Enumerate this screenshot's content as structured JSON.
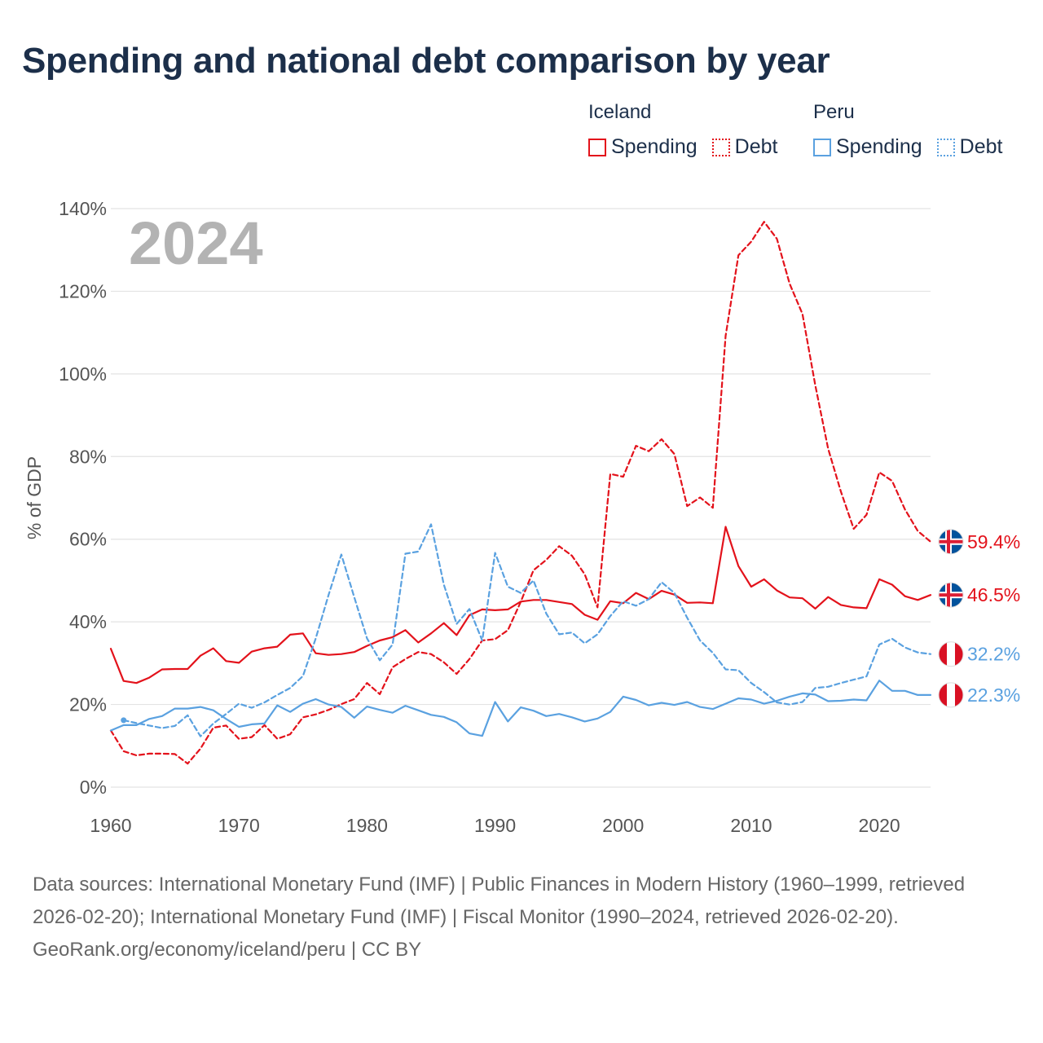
{
  "title": "Spending and national debt comparison by year",
  "year_label": "2024",
  "legend": {
    "groups": [
      {
        "country": "Iceland",
        "items": [
          {
            "label": "Spending",
            "style": "solid",
            "color": "#e3121b"
          },
          {
            "label": "Debt",
            "style": "dotted",
            "color": "#e3121b"
          }
        ]
      },
      {
        "country": "Peru",
        "items": [
          {
            "label": "Spending",
            "style": "solid",
            "color": "#5aa1e0"
          },
          {
            "label": "Debt",
            "style": "dotted",
            "color": "#5aa1e0"
          }
        ]
      }
    ]
  },
  "chart_data": {
    "type": "line",
    "title": "Spending and national debt comparison by year",
    "ylabel": "% of GDP",
    "xlabel": "",
    "xlim": [
      1960,
      2024
    ],
    "ylim": [
      0,
      140
    ],
    "x_ticks": [
      1960,
      1970,
      1980,
      1990,
      2000,
      2010,
      2020
    ],
    "y_ticks": [
      "0%",
      "20%",
      "40%",
      "60%",
      "80%",
      "100%",
      "120%",
      "140%"
    ],
    "y_tick_values": [
      0,
      20,
      40,
      60,
      80,
      100,
      120,
      140
    ],
    "grid": true,
    "series": [
      {
        "name": "Iceland Spending",
        "country": "Iceland",
        "metric": "Spending",
        "color": "#e3121b",
        "dash": "solid",
        "end_label": "46.5%",
        "flag": "iceland",
        "x": [
          1960,
          1961,
          1962,
          1963,
          1964,
          1965,
          1966,
          1967,
          1968,
          1969,
          1970,
          1971,
          1972,
          1973,
          1974,
          1975,
          1976,
          1977,
          1978,
          1979,
          1980,
          1981,
          1982,
          1983,
          1984,
          1985,
          1986,
          1987,
          1988,
          1989,
          1990,
          1991,
          1992,
          1993,
          1994,
          1995,
          1996,
          1997,
          1998,
          1999,
          2000,
          2001,
          2002,
          2003,
          2004,
          2005,
          2006,
          2007,
          2008,
          2009,
          2010,
          2011,
          2012,
          2013,
          2014,
          2015,
          2016,
          2017,
          2018,
          2019,
          2020,
          2021,
          2022,
          2023,
          2024
        ],
        "values": [
          33.5,
          25.7,
          25.2,
          26.5,
          28.5,
          28.6,
          28.6,
          31.8,
          33.6,
          30.5,
          30.1,
          32.8,
          33.6,
          34.0,
          36.9,
          37.2,
          32.4,
          32.0,
          32.2,
          32.7,
          34.2,
          35.5,
          36.3,
          38.0,
          35.0,
          37.2,
          39.7,
          36.8,
          41.6,
          43.0,
          42.8,
          43.0,
          44.9,
          45.3,
          45.3,
          44.8,
          44.3,
          41.7,
          40.5,
          45.0,
          44.5,
          47.0,
          45.5,
          47.5,
          46.6,
          44.6,
          44.7,
          44.5,
          63.0,
          53.5,
          48.5,
          50.3,
          47.6,
          45.9,
          45.7,
          43.2,
          46.0,
          44.1,
          43.5,
          43.3,
          50.3,
          49.0,
          46.2,
          45.3,
          46.5
        ]
      },
      {
        "name": "Iceland Debt",
        "country": "Iceland",
        "metric": "Debt",
        "color": "#e3121b",
        "dash": "dashed",
        "end_label": "59.4%",
        "flag": "iceland",
        "x": [
          1960,
          1961,
          1962,
          1963,
          1964,
          1965,
          1966,
          1967,
          1968,
          1969,
          1970,
          1971,
          1972,
          1973,
          1974,
          1975,
          1976,
          1977,
          1978,
          1979,
          1980,
          1981,
          1982,
          1983,
          1984,
          1985,
          1986,
          1987,
          1988,
          1989,
          1990,
          1991,
          1992,
          1993,
          1994,
          1995,
          1996,
          1997,
          1998,
          1999,
          2000,
          2001,
          2002,
          2003,
          2004,
          2005,
          2006,
          2007,
          2008,
          2009,
          2010,
          2011,
          2012,
          2013,
          2014,
          2015,
          2016,
          2017,
          2018,
          2019,
          2020,
          2021,
          2022,
          2023,
          2024
        ],
        "values": [
          13.7,
          8.7,
          7.7,
          8.1,
          8.1,
          8.0,
          5.7,
          9.3,
          14.4,
          14.9,
          11.7,
          12.1,
          15.0,
          11.7,
          12.8,
          16.9,
          17.6,
          18.7,
          20.1,
          21.3,
          25.2,
          22.5,
          29.0,
          31.0,
          32.7,
          32.2,
          30.2,
          27.4,
          31.0,
          35.5,
          35.8,
          38.0,
          44.8,
          52.5,
          55.0,
          58.3,
          56.0,
          51.5,
          43.5,
          75.8,
          75.1,
          82.6,
          81.3,
          84.2,
          80.6,
          68.0,
          70.1,
          67.6,
          109.2,
          128.7,
          132.0,
          136.8,
          132.7,
          121.8,
          114.5,
          97.3,
          81.9,
          71.5,
          62.5,
          65.9,
          76.2,
          74.1,
          67.2,
          62.0,
          59.4
        ]
      },
      {
        "name": "Peru Spending",
        "country": "Peru",
        "metric": "Spending",
        "color": "#5aa1e0",
        "dash": "solid",
        "end_label": "22.3%",
        "flag": "peru",
        "x": [
          1960,
          1961,
          1962,
          1963,
          1964,
          1965,
          1966,
          1967,
          1968,
          1969,
          1970,
          1971,
          1972,
          1973,
          1974,
          1975,
          1976,
          1977,
          1978,
          1979,
          1980,
          1981,
          1982,
          1983,
          1984,
          1985,
          1986,
          1987,
          1988,
          1989,
          1990,
          1991,
          1992,
          1993,
          1994,
          1995,
          1996,
          1997,
          1998,
          1999,
          2000,
          2001,
          2002,
          2003,
          2004,
          2005,
          2006,
          2007,
          2008,
          2009,
          2010,
          2011,
          2012,
          2013,
          2014,
          2015,
          2016,
          2017,
          2018,
          2019,
          2020,
          2021,
          2022,
          2023,
          2024
        ],
        "values": [
          13.7,
          15.0,
          15.0,
          16.5,
          17.2,
          19.0,
          19.0,
          19.4,
          18.6,
          16.5,
          14.6,
          15.2,
          15.4,
          19.8,
          18.2,
          20.2,
          21.3,
          20.0,
          19.4,
          16.8,
          19.5,
          18.7,
          18.0,
          19.7,
          18.6,
          17.5,
          17.0,
          15.7,
          13.0,
          12.4,
          20.6,
          15.9,
          19.3,
          18.5,
          17.2,
          17.7,
          16.9,
          15.9,
          16.6,
          18.2,
          21.9,
          21.1,
          19.8,
          20.4,
          19.9,
          20.6,
          19.4,
          18.9,
          20.2,
          21.5,
          21.2,
          20.2,
          20.9,
          21.9,
          22.7,
          22.4,
          20.8,
          20.9,
          21.2,
          21.0,
          25.8,
          23.3,
          23.3,
          22.3,
          22.3
        ]
      },
      {
        "name": "Peru Debt",
        "country": "Peru",
        "metric": "Debt",
        "color": "#5aa1e0",
        "dash": "dashed",
        "end_label": "32.2%",
        "flag": "peru",
        "x": [
          1961,
          1962,
          1963,
          1964,
          1965,
          1966,
          1967,
          1968,
          1969,
          1970,
          1971,
          1972,
          1973,
          1974,
          1975,
          1976,
          1977,
          1978,
          1979,
          1980,
          1981,
          1982,
          1983,
          1984,
          1985,
          1986,
          1987,
          1988,
          1989,
          1990,
          1991,
          1992,
          1993,
          1994,
          1995,
          1996,
          1997,
          1998,
          1999,
          2000,
          2001,
          2002,
          2003,
          2004,
          2005,
          2006,
          2007,
          2008,
          2009,
          2010,
          2011,
          2012,
          2013,
          2014,
          2015,
          2016,
          2017,
          2018,
          2019,
          2020,
          2021,
          2022,
          2023,
          2024
        ],
        "values": [
          16.2,
          15.5,
          14.9,
          14.3,
          14.8,
          17.4,
          12.3,
          15.4,
          17.7,
          20.2,
          19.2,
          20.5,
          22.3,
          24.0,
          26.9,
          36.0,
          46.5,
          56.3,
          46.0,
          36.0,
          30.7,
          34.5,
          56.5,
          57.0,
          63.6,
          49.0,
          39.5,
          43.1,
          35.5,
          56.7,
          48.5,
          47.0,
          50.0,
          42.0,
          37.0,
          37.4,
          34.8,
          37.0,
          41.4,
          45.0,
          43.9,
          45.5,
          49.6,
          47.0,
          41.0,
          35.5,
          32.5,
          28.5,
          28.3,
          25.2,
          23.0,
          20.5,
          20.0,
          20.6,
          24.0,
          24.3,
          25.2,
          26.0,
          26.8,
          34.5,
          35.9,
          33.8,
          32.6,
          32.2
        ]
      }
    ]
  },
  "footer": {
    "sources": "Data sources: International Monetary Fund (IMF) | Public Finances in Modern History (1960–1999, retrieved 2026-02-20); International Monetary Fund (IMF) | Fiscal Monitor (1990–2024, retrieved 2026-02-20).",
    "credit": "GeoRank.org/economy/iceland/peru | CC BY"
  }
}
